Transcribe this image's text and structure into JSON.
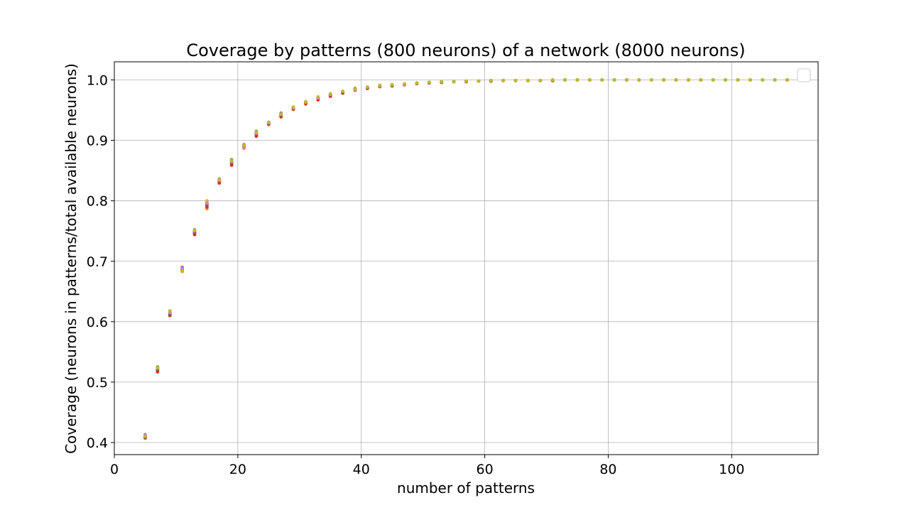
{
  "chart_data": {
    "type": "scatter",
    "title": "Coverage by patterns (800 neurons) of a network (8000 neurons)",
    "xlabel": "number of patterns",
    "ylabel": "Coverage (neurons in patterns/total available neurons)",
    "xlim": [
      0,
      114
    ],
    "ylim": [
      0.38,
      1.03
    ],
    "xticks": [
      0,
      20,
      40,
      60,
      80,
      100
    ],
    "yticks": [
      0.4,
      0.5,
      0.6,
      0.7,
      0.8,
      0.9,
      1.0
    ],
    "xtick_labels": [
      "0",
      "20",
      "40",
      "60",
      "80",
      "100"
    ],
    "ytick_labels": [
      "0.4",
      "0.5",
      "0.6",
      "0.7",
      "0.8",
      "0.9",
      "1.0"
    ],
    "grid": true,
    "legend": "top-right, empty",
    "colors": [
      "#1f77b4",
      "#ff7f0e",
      "#2ca02c",
      "#d62728",
      "#9467bd",
      "#8c564b",
      "#e377c2",
      "#bcbd22"
    ],
    "x": [
      5,
      7,
      9,
      11,
      13,
      15,
      17,
      19,
      21,
      23,
      25,
      27,
      29,
      31,
      33,
      35,
      37,
      39,
      41,
      43,
      45,
      47,
      49,
      51,
      53,
      55,
      57,
      59,
      61,
      63,
      65,
      67,
      69,
      71,
      73,
      75,
      77,
      79,
      81,
      83,
      85,
      87,
      89,
      91,
      93,
      95,
      97,
      99,
      101,
      103,
      105,
      107,
      109
    ],
    "series": [
      {
        "values": [
          0.41,
          0.522,
          0.613,
          0.686,
          0.748,
          0.793,
          0.833,
          0.864,
          0.89,
          0.911,
          0.928,
          0.942,
          0.953,
          0.962,
          0.969,
          0.975,
          0.98,
          0.984,
          0.987,
          0.989,
          0.991,
          0.993,
          0.994,
          0.995,
          0.996,
          0.997,
          0.998,
          0.998,
          0.998,
          0.999,
          0.999,
          0.999,
          0.999,
          0.999,
          1.0,
          1.0,
          1.0,
          1.0,
          1.0,
          1.0,
          1.0,
          1.0,
          1.0,
          1.0,
          1.0,
          1.0,
          1.0,
          1.0,
          1.0,
          1.0,
          1.0,
          1.0,
          1.0
        ]
      },
      {
        "values": [
          0.407,
          0.519,
          0.617,
          0.683,
          0.746,
          0.787,
          0.829,
          0.861,
          0.887,
          0.908,
          0.926,
          0.94,
          0.951,
          0.96,
          0.968,
          0.974,
          0.979,
          0.986,
          0.986,
          0.989,
          0.991,
          0.992,
          0.994,
          0.995,
          0.996,
          0.997,
          0.998,
          0.998,
          0.998,
          0.999,
          0.999,
          0.999,
          0.999,
          0.999,
          1.0,
          1.0,
          1.0,
          1.0,
          1.0,
          1.0,
          1.0,
          1.0,
          1.0,
          1.0,
          1.0,
          1.0,
          1.0,
          1.0,
          1.0,
          1.0,
          1.0,
          1.0,
          1.0
        ]
      },
      {
        "values": [
          0.411,
          0.525,
          0.614,
          0.689,
          0.749,
          0.797,
          0.832,
          0.868,
          0.892,
          0.915,
          0.929,
          0.945,
          0.954,
          0.963,
          0.971,
          0.977,
          0.981,
          0.984,
          0.988,
          0.991,
          0.992,
          0.993,
          0.995,
          0.996,
          0.997,
          0.997,
          0.998,
          0.998,
          0.999,
          0.999,
          0.999,
          0.999,
          0.999,
          1.0,
          1.0,
          1.0,
          1.0,
          1.0,
          1.0,
          1.0,
          1.0,
          1.0,
          1.0,
          1.0,
          1.0,
          1.0,
          1.0,
          1.0,
          1.0,
          1.0,
          1.0,
          1.0,
          1.0
        ]
      },
      {
        "values": [
          0.409,
          0.517,
          0.61,
          0.685,
          0.744,
          0.79,
          0.83,
          0.859,
          0.889,
          0.907,
          0.927,
          0.939,
          0.952,
          0.961,
          0.967,
          0.973,
          0.978,
          0.983,
          0.986,
          0.989,
          0.99,
          0.992,
          0.994,
          0.995,
          0.996,
          0.997,
          0.997,
          0.998,
          0.998,
          0.999,
          0.999,
          0.999,
          0.999,
          0.999,
          1.0,
          1.0,
          1.0,
          1.0,
          1.0,
          1.0,
          1.0,
          1.0,
          1.0,
          1.0,
          1.0,
          1.0,
          1.0,
          1.0,
          1.0,
          1.0,
          1.0,
          1.0,
          1.0
        ]
      },
      {
        "values": [
          0.413,
          0.521,
          0.612,
          0.69,
          0.752,
          0.795,
          0.836,
          0.866,
          0.893,
          0.913,
          0.93,
          0.943,
          0.955,
          0.964,
          0.97,
          0.976,
          0.98,
          0.984,
          0.987,
          0.99,
          0.991,
          0.993,
          0.994,
          0.995,
          0.996,
          0.997,
          0.998,
          0.998,
          0.999,
          0.999,
          0.999,
          0.999,
          0.999,
          1.0,
          1.0,
          1.0,
          1.0,
          1.0,
          1.0,
          1.0,
          1.0,
          1.0,
          1.0,
          1.0,
          1.0,
          1.0,
          1.0,
          1.0,
          1.0,
          1.0,
          1.0,
          1.0,
          1.0
        ]
      },
      {
        "values": [
          0.408,
          0.52,
          0.611,
          0.687,
          0.747,
          0.792,
          0.831,
          0.862,
          0.891,
          0.91,
          0.928,
          0.941,
          0.953,
          0.962,
          0.969,
          0.975,
          0.979,
          0.985,
          0.987,
          0.989,
          0.991,
          0.993,
          0.994,
          0.995,
          0.996,
          0.997,
          0.998,
          0.998,
          0.998,
          0.999,
          0.999,
          0.999,
          0.999,
          0.999,
          1.0,
          1.0,
          1.0,
          1.0,
          1.0,
          1.0,
          1.0,
          1.0,
          1.0,
          1.0,
          1.0,
          1.0,
          1.0,
          1.0,
          1.0,
          1.0,
          1.0,
          1.0,
          1.0
        ]
      },
      {
        "values": [
          0.412,
          0.523,
          0.615,
          0.688,
          0.75,
          0.796,
          0.834,
          0.865,
          0.888,
          0.912,
          0.929,
          0.944,
          0.954,
          0.963,
          0.97,
          0.976,
          0.981,
          0.984,
          0.988,
          0.99,
          0.992,
          0.993,
          0.995,
          0.996,
          0.997,
          0.997,
          0.998,
          0.998,
          0.999,
          0.999,
          0.999,
          0.999,
          0.999,
          1.0,
          1.0,
          1.0,
          1.0,
          1.0,
          1.0,
          1.0,
          1.0,
          1.0,
          1.0,
          1.0,
          1.0,
          1.0,
          1.0,
          1.0,
          1.0,
          1.0,
          1.0,
          1.0,
          1.0
        ]
      },
      {
        "values": [
          0.41,
          0.524,
          0.618,
          0.684,
          0.751,
          0.8,
          0.835,
          0.867,
          0.892,
          0.914,
          0.93,
          0.943,
          0.955,
          0.964,
          0.972,
          0.977,
          0.981,
          0.985,
          0.988,
          0.991,
          0.992,
          0.993,
          0.995,
          0.996,
          0.997,
          0.997,
          0.998,
          0.998,
          0.999,
          0.999,
          0.999,
          0.999,
          0.999,
          1.0,
          1.0,
          1.0,
          1.0,
          1.0,
          1.0,
          1.0,
          1.0,
          1.0,
          1.0,
          1.0,
          1.0,
          1.0,
          1.0,
          1.0,
          1.0,
          1.0,
          1.0,
          1.0,
          1.0
        ]
      }
    ]
  }
}
